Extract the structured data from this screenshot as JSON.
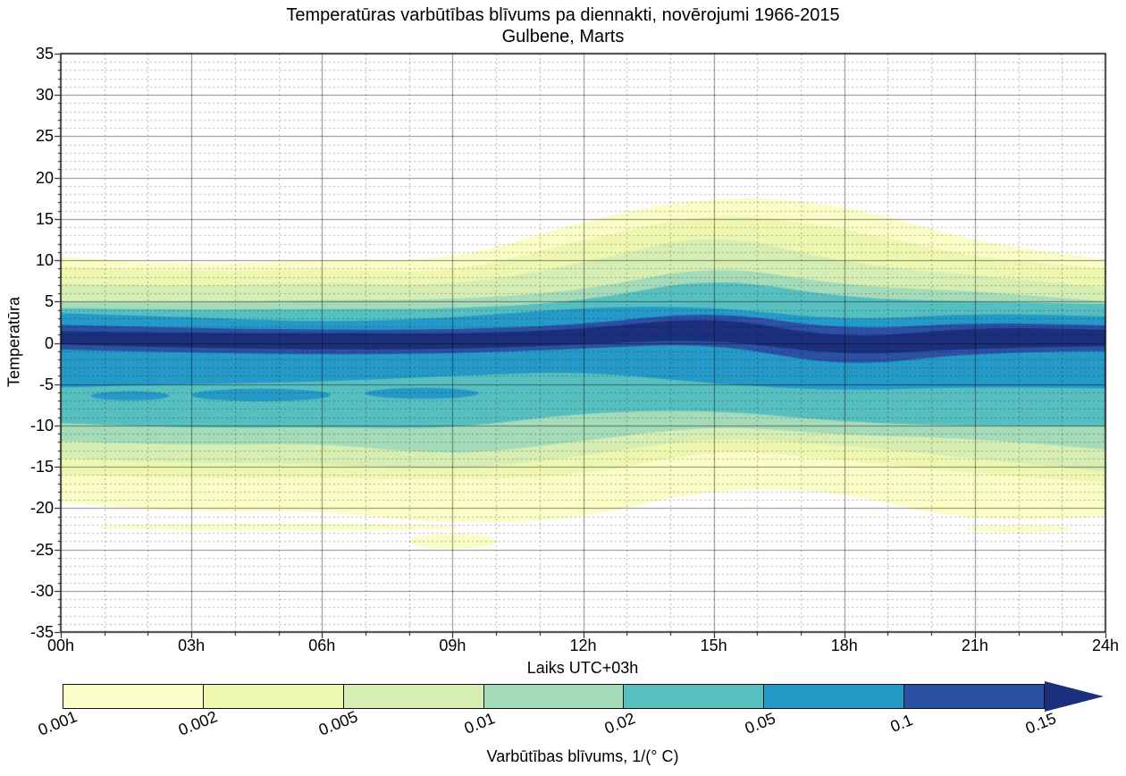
{
  "chart_data": {
    "type": "heatmap",
    "subtype": "filled_contour",
    "title": "Temperatūras varbūtības blīvums pa diennakti, novērojumi 1966-2015",
    "subtitle": "Gulbene, Marts",
    "xlabel": "Laiks UTC+03h",
    "ylabel": "Temperatūra",
    "xlim": [
      0,
      24
    ],
    "ylim": [
      -35,
      35
    ],
    "x_tick_hours": [
      0,
      3,
      6,
      9,
      12,
      15,
      18,
      21,
      24
    ],
    "x_tick_labels": [
      "00h",
      "03h",
      "06h",
      "09h",
      "12h",
      "15h",
      "18h",
      "21h",
      "24h"
    ],
    "y_ticks": [
      35,
      30,
      25,
      20,
      15,
      10,
      5,
      0,
      -5,
      -10,
      -15,
      -20,
      -25,
      -30,
      -35
    ],
    "grid": {
      "major": true,
      "minor": true,
      "major_x_step_hours": 3,
      "minor_x_step_hours": 1,
      "major_y_step_deg": 5,
      "minor_y_step_deg": 1
    },
    "levels": [
      0.001,
      0.002,
      0.005,
      0.01,
      0.02,
      0.05,
      0.1,
      0.15
    ],
    "band_colors": [
      "#FBFDC6",
      "#EDF7B0",
      "#D6EEB3",
      "#A5DBB8",
      "#57BFC0",
      "#2599C7",
      "#2B50A4"
    ],
    "over_color": "#1C2F7C",
    "hours": [
      0,
      3,
      6,
      9,
      12,
      15,
      18,
      21,
      24
    ],
    "bands": [
      {
        "level": 0.001,
        "upper": [
          10.4,
          9.3,
          10.2,
          9.9,
          14.8,
          17.9,
          16.8,
          12.2,
          10.1
        ],
        "lower": [
          -19.3,
          -20.5,
          -20.3,
          -22.0,
          -21.3,
          -17.5,
          -18.0,
          -22.0,
          -21.0
        ]
      },
      {
        "level": 0.002,
        "upper": [
          9.2,
          8.6,
          9.0,
          8.4,
          12.5,
          15.9,
          13.9,
          10.3,
          9.0
        ],
        "lower": [
          -15.9,
          -16.4,
          -16.3,
          -16.6,
          -16.1,
          -12.8,
          -14.2,
          -15.9,
          -16.9
        ]
      },
      {
        "level": 0.005,
        "upper": [
          7.2,
          6.8,
          7.4,
          6.8,
          9.6,
          13.5,
          9.6,
          8.2,
          6.7
        ],
        "lower": [
          -14.0,
          -14.5,
          -14.6,
          -15.5,
          -13.7,
          -11.3,
          -12.4,
          -14.0,
          -15.6
        ]
      },
      {
        "level": 0.01,
        "upper": [
          5.0,
          4.9,
          5.2,
          5.2,
          6.3,
          9.5,
          6.9,
          6.3,
          5.0
        ],
        "lower": [
          -11.9,
          -12.4,
          -12.1,
          -13.7,
          -11.9,
          -9.9,
          -11.2,
          -11.5,
          -12.9
        ]
      },
      {
        "level": 0.02,
        "upper": [
          4.2,
          4.0,
          4.1,
          4.1,
          5.0,
          8.0,
          5.4,
          5.0,
          4.7
        ],
        "lower": [
          -9.7,
          -10.3,
          -10.2,
          -10.4,
          -8.4,
          -8.1,
          -9.6,
          -10.1,
          -10.1
        ]
      },
      {
        "level": 0.05,
        "upper": [
          3.6,
          3.1,
          2.5,
          3.0,
          4.3,
          4.4,
          2.7,
          3.6,
          3.2
        ],
        "lower": [
          -5.4,
          -5.0,
          -4.7,
          -4.0,
          -3.4,
          -5.0,
          -5.8,
          -5.3,
          -5.5
        ]
      },
      {
        "level": 0.1,
        "upper": [
          2.2,
          1.8,
          1.6,
          1.6,
          2.2,
          3.9,
          1.5,
          2.5,
          2.1
        ],
        "lower": [
          -0.8,
          -1.2,
          -1.4,
          -1.3,
          -0.7,
          0.0,
          -3.0,
          -1.1,
          -1.0
        ]
      },
      {
        "level": 0.15,
        "upper": [
          1.4,
          1.2,
          1.2,
          1.1,
          1.6,
          3.3,
          0.4,
          1.9,
          1.6
        ],
        "lower": [
          -0.2,
          -0.6,
          -0.8,
          -0.8,
          -0.2,
          0.5,
          -1.6,
          -0.6,
          -0.4
        ]
      }
    ],
    "patches": [
      {
        "band_level": 0.05,
        "cx": 4.6,
        "cy": -6.3,
        "rx": 1.6,
        "ry": 0.75
      },
      {
        "band_level": 0.05,
        "cx": 8.3,
        "cy": -6.1,
        "rx": 1.3,
        "ry": 0.65
      },
      {
        "band_level": 0.05,
        "cx": 1.6,
        "cy": -6.4,
        "rx": 0.9,
        "ry": 0.55
      },
      {
        "band_level": 0.001,
        "cx": 5.0,
        "cy": -22.3,
        "rx": 4.2,
        "ry": 0.4
      },
      {
        "band_level": 0.001,
        "cx": 9.0,
        "cy": -24.0,
        "rx": 1.0,
        "ry": 0.9
      },
      {
        "band_level": 0.001,
        "cx": 10.3,
        "cy": 11.2,
        "rx": 0.45,
        "ry": 0.5
      },
      {
        "band_level": 0.001,
        "cx": 22.0,
        "cy": -22.5,
        "rx": 1.2,
        "ry": 0.4
      }
    ],
    "colorbar": {
      "orientation": "horizontal",
      "arrow_end": "right",
      "tick_labels": [
        "0.001",
        "0.002",
        "0.005",
        "0.01",
        "0.02",
        "0.05",
        "0.1",
        "0.15"
      ],
      "label": "Varbūtības blīvums, 1/(° C)"
    }
  }
}
